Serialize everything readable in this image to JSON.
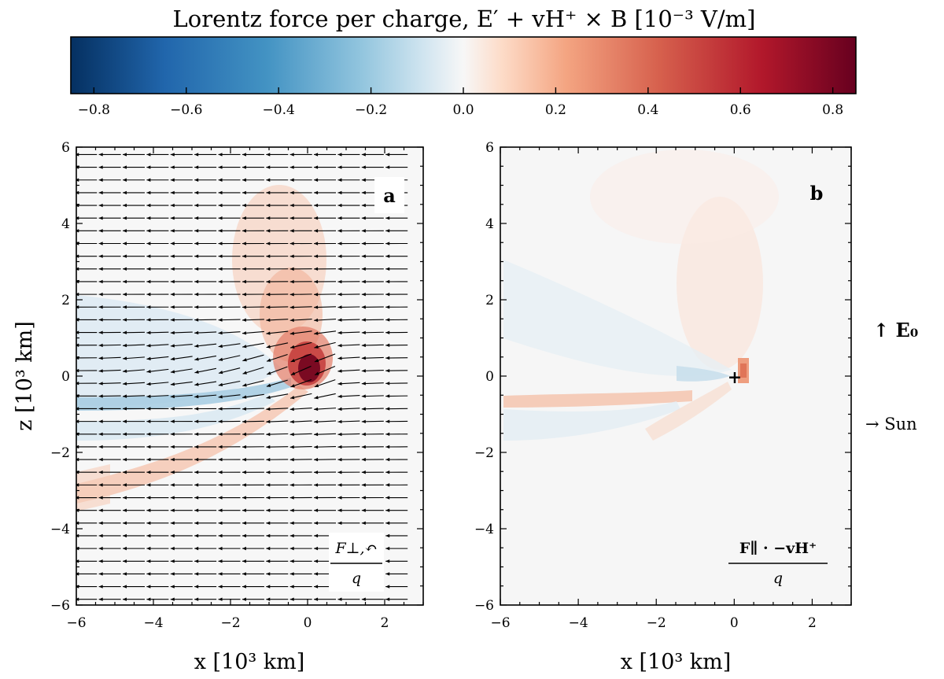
{
  "colorbar": {
    "title": "Lorentz force per charge, E′ + vH⁺ × B  [10⁻³ V/m]",
    "min": -0.85,
    "max": 0.85,
    "ticks": [
      "−0.8",
      "−0.6",
      "−0.4",
      "−0.2",
      "0.0",
      "0.2",
      "0.4",
      "0.6",
      "0.8"
    ],
    "tick_values": [
      -0.8,
      -0.6,
      -0.4,
      -0.2,
      0.0,
      0.2,
      0.4,
      0.6,
      0.8
    ],
    "colormap": "RdBu_r",
    "low_color": "#053061",
    "mid_color": "#f7f7f7",
    "high_color": "#67001f"
  },
  "side_labels": {
    "e0": "↑ E₀",
    "sun": "→ Sun"
  },
  "chart_data": [
    {
      "type": "heatmap",
      "panel": "a",
      "panel_label": "a",
      "xlabel": "x [10³  km]",
      "ylabel": "z [10³  km]",
      "xlim": [
        -6,
        3
      ],
      "ylim": [
        -6,
        6
      ],
      "xticks": [
        "−6",
        "−4",
        "−2",
        "0",
        "2"
      ],
      "xtick_values": [
        -6,
        -4,
        -2,
        0,
        2
      ],
      "yticks": [
        "−6",
        "−4",
        "−2",
        "0",
        "2",
        "4",
        "6"
      ],
      "ytick_values": [
        -6,
        -4,
        -2,
        0,
        2,
        4,
        6
      ],
      "inset_numerator": "F⊥,↶",
      "inset_denominator": "q",
      "overlay": "quiver arrows pointing mostly in −x, deflected upward near origin",
      "features": [
        {
          "name": "core",
          "x": 0.05,
          "z": 0.1,
          "value": 0.85
        },
        {
          "name": "upper plume",
          "x": -0.5,
          "z": 3.0,
          "value": 0.2
        },
        {
          "name": "blue wake",
          "x": -3.5,
          "z": -0.6,
          "value": -0.25
        },
        {
          "name": "lower red tail",
          "x": -3.0,
          "z": -2.5,
          "value": 0.1
        }
      ]
    },
    {
      "type": "heatmap",
      "panel": "b",
      "panel_label": "b",
      "xlabel": "x [10³  km]",
      "ylabel": "",
      "xlim": [
        -6,
        3
      ],
      "ylim": [
        -6,
        6
      ],
      "xticks": [
        "−6",
        "−4",
        "−2",
        "0",
        "2"
      ],
      "xtick_values": [
        -6,
        -4,
        -2,
        0,
        2
      ],
      "yticks": [
        "−6",
        "−4",
        "−2",
        "0",
        "2",
        "4",
        "6"
      ],
      "ytick_values": [
        -6,
        -4,
        -2,
        0,
        2,
        4,
        6
      ],
      "inset_numerator": "F∥ · −vH⁺",
      "inset_denominator": "q",
      "marker": {
        "x": 0,
        "z": 0,
        "symbol": "+"
      },
      "features": [
        {
          "name": "spot",
          "x": 0.25,
          "z": 0.2,
          "value": 0.3
        },
        {
          "name": "red tail",
          "x": -3.5,
          "z": -0.7,
          "value": 0.15
        },
        {
          "name": "faint blue",
          "x": -1.0,
          "z": -0.2,
          "value": -0.06
        }
      ]
    }
  ]
}
